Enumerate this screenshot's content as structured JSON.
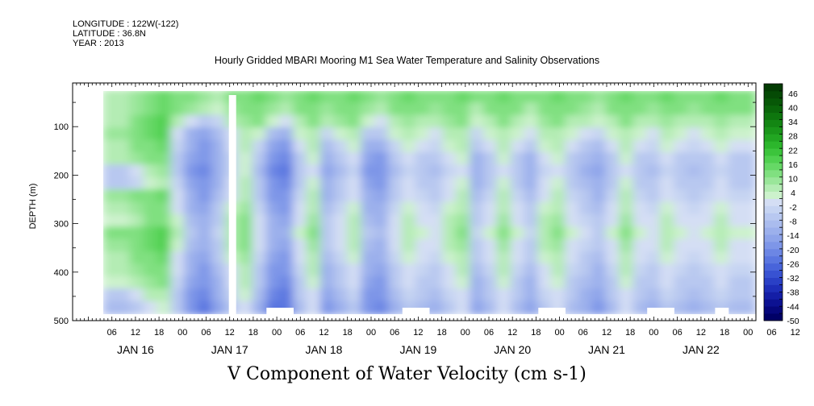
{
  "header": {
    "longitude": "LONGITUDE : 122W(-122)",
    "latitude": "LATITUDE : 36.8N",
    "year": "YEAR : 2013"
  },
  "title": "Hourly Gridded MBARI Mooring M1 Sea Water Temperature and Salinity Observations",
  "bottom_title": "V Component of Water Velocity (cm s-1)",
  "chart_data": {
    "type": "heatmap",
    "title": "Hourly Gridded MBARI Mooring M1 Sea Water Temperature and Salinity Observations",
    "xlabel": "",
    "ylabel": "DEPTH (m)",
    "colorbar_label": "V Component of Water Velocity (cm s-1)",
    "y_axis": {
      "range": [
        500,
        10
      ],
      "inverted": true,
      "ticks": [
        100,
        200,
        300,
        400,
        500
      ]
    },
    "x_axis": {
      "start": "2013-01-15 20:00",
      "end": "2013-01-23 02:00",
      "hour_ticks": [
        "06",
        "12",
        "18",
        "00",
        "06",
        "12",
        "18",
        "00",
        "06",
        "12",
        "18",
        "00",
        "06",
        "12",
        "18",
        "00",
        "06",
        "12",
        "18",
        "00",
        "06",
        "12",
        "18",
        "00",
        "06",
        "12",
        "18",
        "00",
        "06",
        "12",
        "18",
        "00"
      ],
      "day_labels": [
        "JAN 16",
        "JAN 17",
        "JAN 18",
        "JAN 19",
        "JAN 20",
        "JAN 21",
        "JAN 22"
      ]
    },
    "colorbar": {
      "range": [
        -50,
        50
      ],
      "tick_labels": [
        "46",
        "40",
        "34",
        "28",
        "22",
        "16",
        "10",
        "4",
        "-2",
        "-8",
        "-14",
        "-20",
        "-26",
        "-32",
        "-38",
        "-44",
        "-50"
      ],
      "levels": [
        -50,
        -47,
        -44,
        -41,
        -38,
        -35,
        -32,
        -29,
        -26,
        -23,
        -20,
        -17,
        -14,
        -11,
        -8,
        -5,
        -2,
        1,
        4,
        7,
        10,
        13,
        16,
        19,
        22,
        25,
        28,
        31,
        34,
        37,
        40,
        43,
        46,
        50
      ],
      "colors": [
        "#000066",
        "#06077c",
        "#0c1192",
        "#141ea6",
        "#1e2eb8",
        "#2a40c6",
        "#3852d2",
        "#4864da",
        "#5a76e0",
        "#6c86e4",
        "#7e96e8",
        "#8ea4ea",
        "#9cb0ec",
        "#aabcee",
        "#b8c8f0",
        "#c6d4f2",
        "#d4def4",
        "#ccf2cc",
        "#b4ecb4",
        "#9ae69a",
        "#80e080",
        "#66d866",
        "#50d050",
        "#3cc43c",
        "#2cb62c",
        "#22a622",
        "#1a961a",
        "#138613",
        "#0e760e",
        "#0a660a",
        "#075807",
        "#054a05",
        "#033c03"
      ]
    },
    "data": {
      "rows": [
        [
          0,
          5,
          5,
          8,
          12,
          15,
          12,
          10,
          8,
          6,
          10,
          12,
          14,
          10,
          8,
          12,
          15,
          10,
          12,
          14,
          10,
          8,
          12,
          14,
          12,
          10,
          12,
          14,
          10,
          12,
          14,
          12,
          10,
          12,
          15,
          12,
          10,
          8,
          12,
          14,
          12,
          10,
          14,
          12,
          10,
          12,
          14,
          12,
          12
        ],
        [
          0,
          4,
          5,
          8,
          12,
          14,
          10,
          8,
          4,
          2,
          8,
          10,
          12,
          8,
          6,
          10,
          12,
          8,
          10,
          12,
          8,
          6,
          10,
          12,
          10,
          8,
          10,
          12,
          6,
          10,
          12,
          10,
          6,
          10,
          12,
          10,
          8,
          6,
          10,
          12,
          10,
          8,
          12,
          10,
          8,
          10,
          12,
          10,
          10
        ],
        [
          0,
          6,
          6,
          10,
          14,
          16,
          6,
          -2,
          -8,
          -4,
          4,
          8,
          10,
          2,
          -2,
          6,
          10,
          4,
          8,
          10,
          2,
          0,
          6,
          8,
          6,
          4,
          8,
          10,
          2,
          6,
          10,
          6,
          2,
          8,
          10,
          6,
          4,
          2,
          6,
          10,
          6,
          4,
          8,
          6,
          4,
          6,
          8,
          6,
          6
        ],
        [
          0,
          8,
          8,
          12,
          14,
          16,
          -2,
          -12,
          -16,
          -10,
          0,
          6,
          2,
          -10,
          -12,
          2,
          6,
          -4,
          2,
          6,
          -6,
          -8,
          2,
          6,
          2,
          0,
          4,
          6,
          -4,
          2,
          6,
          2,
          -2,
          4,
          6,
          2,
          -2,
          -4,
          2,
          6,
          2,
          0,
          4,
          2,
          0,
          2,
          4,
          2,
          2
        ],
        [
          0,
          6,
          6,
          10,
          12,
          14,
          -4,
          -14,
          -18,
          -12,
          -2,
          4,
          -4,
          -16,
          -18,
          -2,
          4,
          -10,
          -4,
          2,
          -12,
          -14,
          -4,
          2,
          -2,
          -4,
          2,
          4,
          -8,
          -2,
          4,
          -2,
          -8,
          2,
          4,
          -2,
          -6,
          -10,
          -2,
          4,
          -2,
          -4,
          2,
          -2,
          -4,
          -2,
          2,
          -2,
          -2
        ],
        [
          0,
          4,
          4,
          8,
          10,
          12,
          -6,
          -16,
          -20,
          -14,
          -4,
          2,
          -8,
          -20,
          -22,
          -6,
          2,
          -14,
          -8,
          -2,
          -16,
          -18,
          -8,
          -2,
          -6,
          -8,
          -2,
          2,
          -12,
          -6,
          2,
          -6,
          -12,
          -2,
          2,
          -6,
          -10,
          -14,
          -6,
          2,
          -6,
          -8,
          -2,
          -6,
          -8,
          -6,
          -2,
          -6,
          -6
        ],
        [
          0,
          -6,
          -6,
          -2,
          4,
          8,
          -6,
          -18,
          -22,
          -14,
          -4,
          2,
          -10,
          -22,
          -24,
          -8,
          0,
          -16,
          -10,
          -4,
          -18,
          -20,
          -10,
          -4,
          -8,
          -10,
          -4,
          0,
          -14,
          -8,
          0,
          -8,
          -14,
          -4,
          0,
          -8,
          -12,
          -16,
          -8,
          0,
          -8,
          -10,
          -4,
          -8,
          -10,
          -8,
          -4,
          -8,
          -8
        ],
        [
          0,
          -8,
          -8,
          -4,
          2,
          6,
          -4,
          -16,
          -20,
          -12,
          -2,
          4,
          -8,
          -20,
          -22,
          -6,
          2,
          -14,
          -8,
          -2,
          -16,
          -18,
          -8,
          -2,
          -6,
          -8,
          -2,
          2,
          -12,
          -6,
          2,
          -6,
          -12,
          -2,
          2,
          -6,
          -10,
          -14,
          -6,
          2,
          -6,
          -8,
          -2,
          -6,
          -8,
          -6,
          -2,
          -6,
          -6
        ],
        [
          0,
          8,
          8,
          10,
          12,
          14,
          -2,
          -14,
          -18,
          -10,
          0,
          6,
          -6,
          -18,
          -20,
          -4,
          4,
          -12,
          -6,
          0,
          -14,
          -16,
          -6,
          0,
          -4,
          -6,
          0,
          4,
          -10,
          -4,
          4,
          -4,
          -10,
          0,
          4,
          -4,
          -8,
          -12,
          -4,
          4,
          -4,
          -6,
          0,
          -4,
          -6,
          -4,
          0,
          -4,
          -4
        ],
        [
          0,
          6,
          6,
          8,
          10,
          12,
          0,
          -12,
          -16,
          -8,
          2,
          8,
          -4,
          -16,
          -18,
          -2,
          6,
          -10,
          -4,
          2,
          -12,
          -14,
          -4,
          2,
          -2,
          -4,
          2,
          6,
          -8,
          -2,
          6,
          -2,
          -8,
          2,
          6,
          -2,
          -6,
          -10,
          -2,
          6,
          -2,
          -4,
          2,
          -2,
          -4,
          -2,
          2,
          -2,
          -2
        ],
        [
          0,
          2,
          2,
          6,
          10,
          12,
          2,
          -10,
          -14,
          -6,
          4,
          10,
          -2,
          -14,
          -16,
          0,
          8,
          -8,
          -2,
          4,
          -10,
          -12,
          -2,
          4,
          0,
          -2,
          4,
          8,
          -6,
          0,
          8,
          0,
          -6,
          4,
          8,
          0,
          -4,
          -8,
          0,
          8,
          0,
          -2,
          4,
          0,
          -2,
          0,
          4,
          0,
          0
        ],
        [
          0,
          10,
          10,
          12,
          14,
          16,
          4,
          -8,
          -12,
          -4,
          6,
          12,
          0,
          -12,
          -14,
          2,
          10,
          -6,
          0,
          6,
          -8,
          -10,
          0,
          6,
          2,
          0,
          6,
          10,
          -4,
          2,
          10,
          2,
          -4,
          6,
          10,
          2,
          -2,
          -6,
          2,
          10,
          2,
          0,
          6,
          2,
          0,
          2,
          6,
          2,
          2
        ],
        [
          0,
          8,
          8,
          12,
          14,
          16,
          2,
          -10,
          -14,
          -6,
          4,
          10,
          -2,
          -14,
          -16,
          0,
          8,
          -8,
          -2,
          4,
          -10,
          -12,
          -2,
          4,
          0,
          -2,
          4,
          8,
          -6,
          0,
          8,
          0,
          -6,
          4,
          8,
          0,
          -4,
          -8,
          0,
          8,
          0,
          -2,
          4,
          0,
          -2,
          0,
          4,
          0,
          0
        ],
        [
          0,
          6,
          6,
          10,
          12,
          14,
          0,
          -12,
          -16,
          -8,
          2,
          8,
          -4,
          -16,
          -18,
          -2,
          6,
          -10,
          -4,
          2,
          -12,
          -14,
          -4,
          2,
          -2,
          -4,
          2,
          6,
          -8,
          -2,
          6,
          -2,
          -8,
          2,
          6,
          -2,
          -6,
          -10,
          -2,
          6,
          -2,
          -4,
          2,
          -2,
          -4,
          -2,
          2,
          -2,
          -2
        ],
        [
          0,
          4,
          4,
          8,
          10,
          12,
          -2,
          -14,
          -18,
          -10,
          0,
          6,
          -6,
          -18,
          -20,
          -4,
          4,
          -12,
          -6,
          0,
          -14,
          -16,
          -6,
          0,
          -4,
          -6,
          0,
          4,
          -10,
          -4,
          4,
          -4,
          -10,
          0,
          4,
          -4,
          -8,
          -12,
          -4,
          4,
          -4,
          -6,
          0,
          -4,
          -6,
          -4,
          0,
          -4,
          -4
        ],
        [
          0,
          2,
          2,
          6,
          8,
          10,
          -4,
          -16,
          -20,
          -12,
          -2,
          4,
          -8,
          -20,
          -22,
          -6,
          2,
          -14,
          -8,
          -2,
          -16,
          -18,
          -8,
          -2,
          -6,
          -8,
          -2,
          2,
          -12,
          -6,
          2,
          -6,
          -12,
          -2,
          2,
          -6,
          -10,
          -14,
          -6,
          2,
          -6,
          -8,
          -2,
          -6,
          -8,
          -6,
          -2,
          -6,
          -6
        ],
        [
          0,
          -6,
          -6,
          -2,
          4,
          6,
          -6,
          -18,
          -22,
          -14,
          -4,
          2,
          -10,
          -22,
          -24,
          -8,
          0,
          -16,
          -10,
          -4,
          -18,
          -20,
          -10,
          -4,
          -8,
          -10,
          -4,
          0,
          -14,
          -8,
          0,
          -8,
          -14,
          -4,
          0,
          -8,
          -12,
          -16,
          -8,
          0,
          -8,
          -10,
          -4,
          -8,
          -10,
          -8,
          -4,
          -8,
          -8
        ],
        [
          0,
          -10,
          -10,
          -6,
          0,
          2,
          -8,
          -20,
          -24,
          -16,
          -6,
          0,
          -12,
          -24,
          -26,
          -10,
          -2,
          -18,
          -12,
          -6,
          -20,
          -22,
          -12,
          -6,
          -10,
          -12,
          -6,
          -2,
          -16,
          -10,
          -2,
          -10,
          -16,
          -6,
          -2,
          -10,
          -14,
          -18,
          -10,
          -2,
          -10,
          -12,
          -6,
          -10,
          -12,
          -10,
          -6,
          -10,
          -10
        ]
      ],
      "mask": {
        "gap_columns": [
          10
        ],
        "bottom_gaps": [
          [
            13,
            15
          ],
          [
            23,
            25
          ],
          [
            33,
            35
          ],
          [
            41,
            43
          ],
          [
            46,
            47
          ]
        ]
      }
    }
  }
}
